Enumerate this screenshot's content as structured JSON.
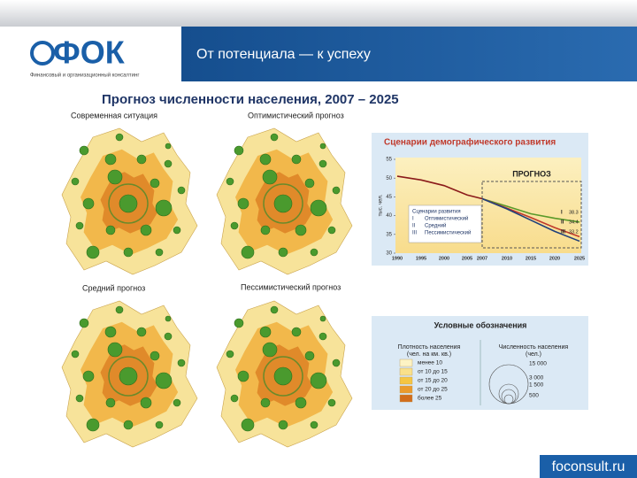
{
  "header": {
    "logo": "ФОК",
    "logo_caption": "Финансовый и организационный консалтинг",
    "tagline": "От потенциала — к успеху"
  },
  "title": "Прогноз численности населения, 2007 – 2025",
  "maps": [
    {
      "title": "Современная ситуация"
    },
    {
      "title": "Оптимистический прогноз"
    },
    {
      "title": "Средний прогноз"
    },
    {
      "title": "Пессимистический прогноз"
    }
  ],
  "chart_data": {
    "type": "line",
    "title": "Сценарии демографического развития",
    "ylabel": "тыс. чел.",
    "categories": [
      "1990",
      "1995",
      "2000",
      "2005",
      "2007",
      "2010",
      "2015",
      "2020",
      "2025"
    ],
    "ylim": [
      30,
      55
    ],
    "yticks": [
      30,
      35,
      40,
      45,
      50,
      55
    ],
    "forecast_label": "ПРОГНОЗ",
    "legend_title": "Сценарии развития",
    "series": [
      {
        "color": "#8b1a1a",
        "values": [
          50.5,
          49.5,
          48,
          45.5,
          44.5,
          null,
          null,
          null,
          null
        ]
      },
      {
        "marker": "I",
        "name": "Оптимистический",
        "color": "#5a9a2a",
        "values": [
          null,
          null,
          null,
          null,
          44.5,
          42.5,
          40.5,
          39.3,
          38.3
        ]
      },
      {
        "marker": "II",
        "name": "Средний",
        "color": "#c0392b",
        "values": [
          null,
          null,
          null,
          null,
          44.5,
          42,
          39.5,
          36.8,
          34.4
        ]
      },
      {
        "marker": "III",
        "name": "Пессимистический",
        "color": "#1f3f7a",
        "values": [
          null,
          null,
          null,
          null,
          44.5,
          41.8,
          38.8,
          35.8,
          33.2
        ]
      }
    ]
  },
  "legend": {
    "title": "Условные обозначения",
    "density": {
      "title": "Плотность населения",
      "unit": "(чел. на км. кв.)",
      "classes": [
        {
          "label": "менее 10",
          "color": "#fdf3c4"
        },
        {
          "label": "от 10 до 15",
          "color": "#f9e08a"
        },
        {
          "label": "от 15 до 20",
          "color": "#f5c542"
        },
        {
          "label": "от 20 до 25",
          "color": "#eb9a2c"
        },
        {
          "label": "более 25",
          "color": "#d26d1c"
        }
      ]
    },
    "population": {
      "title": "Численность населения",
      "unit": "(чел.)",
      "sizes": [
        "15 000",
        "3 000",
        "1 500",
        "500"
      ]
    }
  },
  "footer": "foconsult.ru"
}
